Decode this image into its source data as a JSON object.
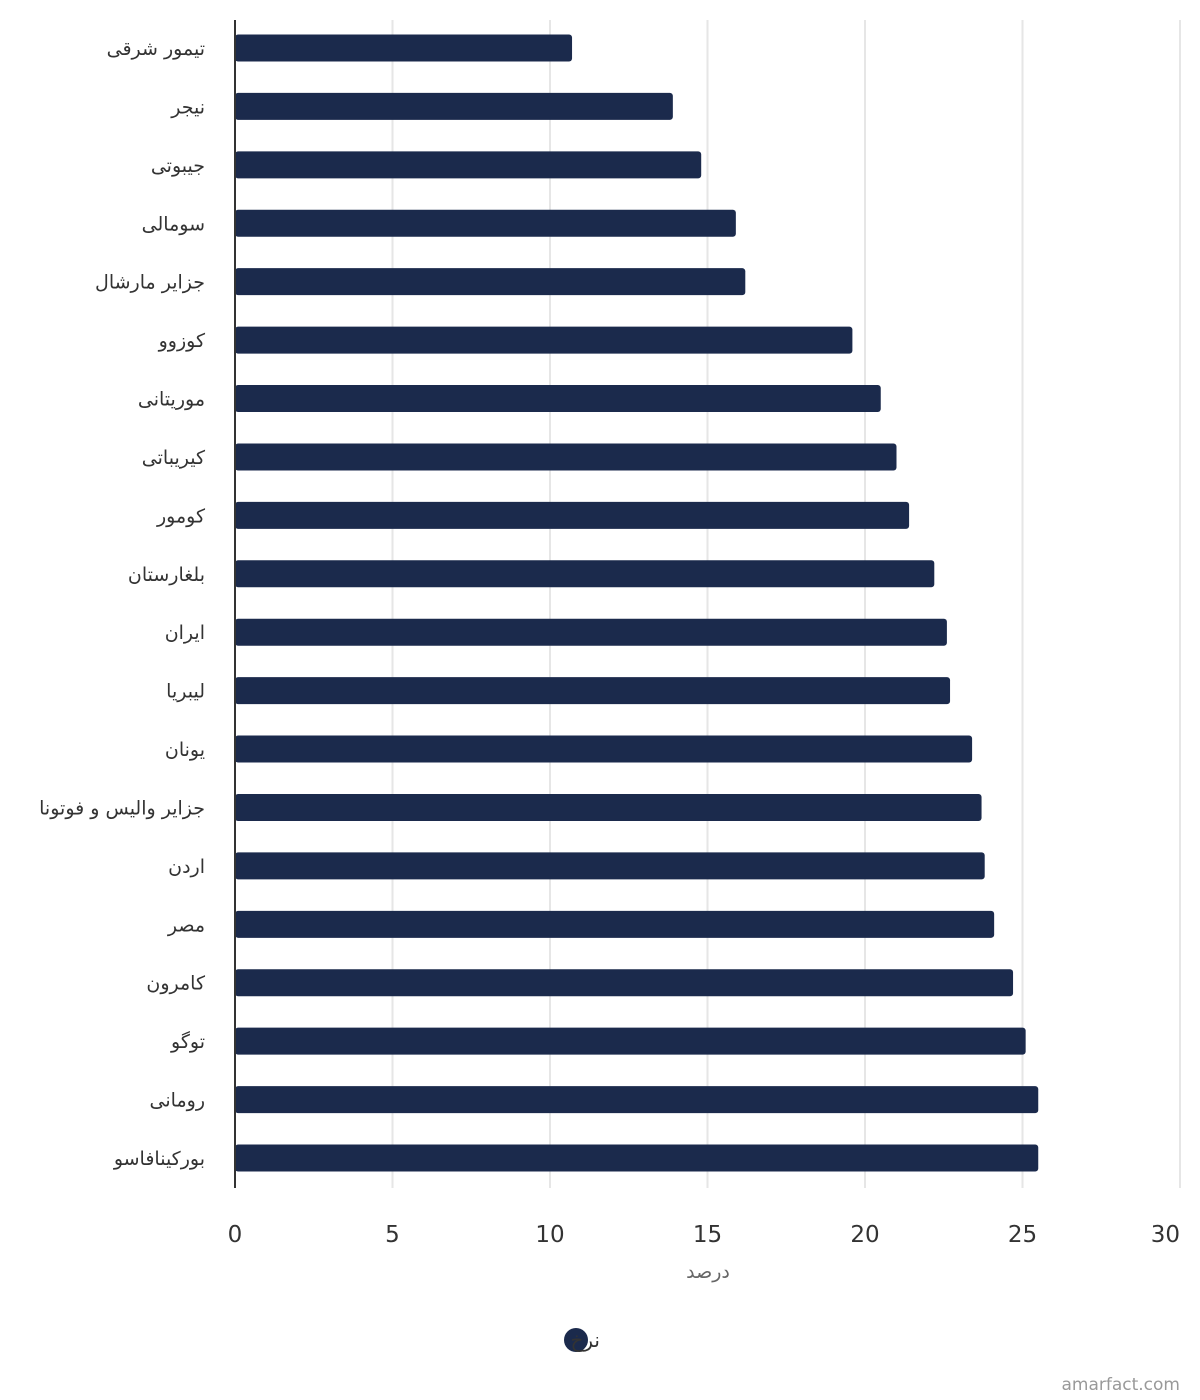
{
  "chart_data": {
    "type": "bar",
    "orientation": "horizontal",
    "categories": [
      "تیمور شرقی",
      "نیجر",
      "جیبوتی",
      "سومالی",
      "جزایر مارشال",
      "کوزوو",
      "موریتانی",
      "کیریباتی",
      "کومور",
      "بلغارستان",
      "ایران",
      "لیبریا",
      "یونان",
      "جزایر والیس و فوتونا",
      "اردن",
      "مصر",
      "کامرون",
      "توگو",
      "رومانی",
      "بورکینافاسو"
    ],
    "series": [
      {
        "name": "نرخ",
        "color": "#1b2a4c",
        "values": [
          10.7,
          13.9,
          14.8,
          15.9,
          16.2,
          19.6,
          20.5,
          21.0,
          21.4,
          22.2,
          22.6,
          22.7,
          23.4,
          23.7,
          23.8,
          24.1,
          24.7,
          25.1,
          25.5,
          25.5
        ]
      }
    ],
    "xlabel": "درصد",
    "ylabel": "",
    "xlim": [
      0,
      30
    ],
    "xticks": [
      "0",
      "5",
      "10",
      "15",
      "20",
      "25",
      "30"
    ],
    "grid": true,
    "legend_position": "bottom-center"
  },
  "credit": "amarfact.com"
}
